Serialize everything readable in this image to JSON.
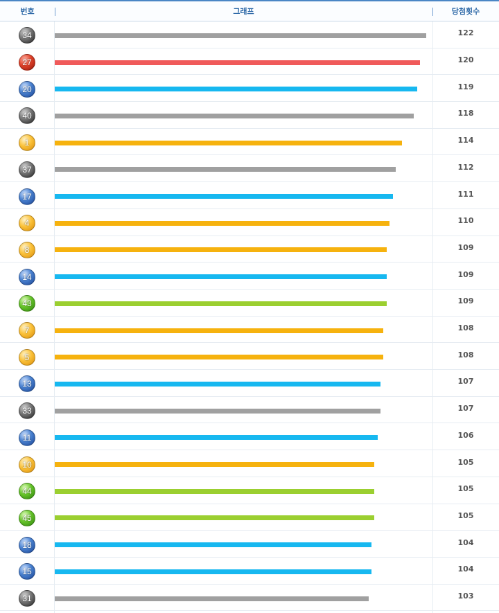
{
  "header": {
    "number": "번호",
    "graph": "그래프",
    "count": "당첨횟수"
  },
  "colors": {
    "gray": "#a0a0a0",
    "red": "#f05a5a",
    "blue": "#17b8f0",
    "yellow": "#f6b20e",
    "green": "#9bcf30"
  },
  "chart_data": {
    "type": "bar",
    "orientation": "horizontal",
    "categories": [
      "34",
      "27",
      "20",
      "40",
      "1",
      "37",
      "17",
      "4",
      "8",
      "14",
      "43",
      "7",
      "5",
      "13",
      "33",
      "11",
      "10",
      "44",
      "45",
      "18",
      "15",
      "31"
    ],
    "values": [
      122,
      120,
      119,
      118,
      114,
      112,
      111,
      110,
      109,
      109,
      109,
      108,
      108,
      107,
      107,
      106,
      105,
      105,
      105,
      104,
      104,
      103
    ],
    "ball_colors": [
      "gray",
      "red",
      "blue",
      "gray",
      "yellow",
      "gray",
      "blue",
      "yellow",
      "yellow",
      "blue",
      "green",
      "yellow",
      "yellow",
      "blue",
      "gray",
      "blue",
      "yellow",
      "green",
      "green",
      "blue",
      "blue",
      "gray"
    ],
    "xlim": [
      0,
      122
    ],
    "title": "",
    "xlabel": "",
    "ylabel": ""
  }
}
